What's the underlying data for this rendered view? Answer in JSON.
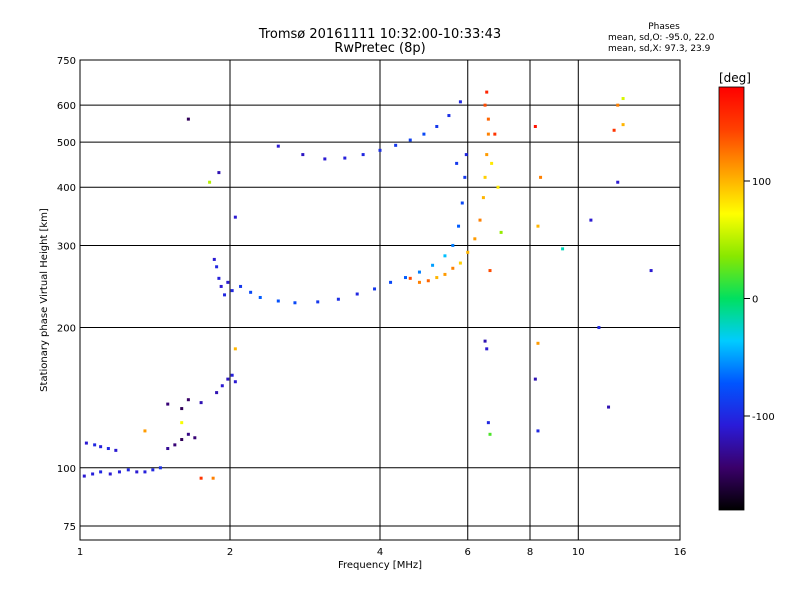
{
  "header": {
    "title_line1": "Tromsø 20161111 10:32:00-10:33:43",
    "title_line2": "RwPretec (8p)"
  },
  "phase_info": {
    "title": "Phases",
    "line_o": "mean, sd,O: -95.0, 22.0",
    "line_x": "mean, sd,X:  97.3, 23.9"
  },
  "colorbar": {
    "label": "[deg]",
    "ticks": [
      "100",
      "0",
      "-100"
    ],
    "tick_values": [
      100,
      0,
      -100
    ],
    "range": [
      -180,
      180
    ],
    "colormap": [
      "#000000",
      "#3a006a",
      "#2a1bd8",
      "#0055ff",
      "#00ccff",
      "#00e060",
      "#88e800",
      "#ffff00",
      "#ffa000",
      "#ff4000",
      "#ff0000"
    ]
  },
  "chart_data": {
    "type": "scatter",
    "title": "Tromsø 20161111 10:32:00-10:33:43",
    "subtitle": "RwPretec (8p)",
    "xlabel": "Frequency [MHz]",
    "ylabel": "Stationary phase Virtual Height [km]",
    "xscale": "log",
    "yscale": "log",
    "xlim": [
      1,
      16
    ],
    "ylim": [
      70,
      750
    ],
    "xticks": [
      1,
      2,
      4,
      6,
      8,
      10,
      16
    ],
    "xtick_labels": [
      "1",
      "2",
      "4",
      "6",
      "8",
      "10",
      "16"
    ],
    "yticks": [
      75,
      100,
      200,
      300,
      400,
      500,
      600,
      750
    ],
    "ytick_labels": [
      "75",
      "100",
      "200",
      "300",
      "400",
      "500",
      "600",
      "750"
    ],
    "grid": true,
    "color_scale": "phase [deg]",
    "series": [
      {
        "points": [
          [
            1.02,
            96,
            -110
          ],
          [
            1.06,
            97,
            -105
          ],
          [
            1.1,
            98,
            -100
          ],
          [
            1.15,
            97,
            -110
          ],
          [
            1.2,
            98,
            -105
          ],
          [
            1.25,
            99,
            -100
          ],
          [
            1.3,
            98,
            -110
          ],
          [
            1.35,
            98,
            -105
          ],
          [
            1.4,
            99,
            -100
          ],
          [
            1.45,
            100,
            -95
          ],
          [
            1.03,
            113,
            -110
          ],
          [
            1.07,
            112,
            -100
          ],
          [
            1.1,
            111,
            -105
          ],
          [
            1.14,
            110,
            -100
          ],
          [
            1.18,
            109,
            -110
          ],
          [
            1.5,
            110,
            -130
          ],
          [
            1.55,
            112,
            -140
          ],
          [
            1.6,
            115,
            -150
          ],
          [
            1.65,
            118,
            -135
          ],
          [
            1.7,
            116,
            -140
          ],
          [
            1.5,
            137,
            -140
          ],
          [
            1.6,
            134,
            -150
          ],
          [
            1.65,
            140,
            -145
          ],
          [
            1.75,
            138,
            -120
          ],
          [
            1.88,
            145,
            -120
          ],
          [
            1.93,
            150,
            -110
          ],
          [
            1.98,
            155,
            -115
          ],
          [
            2.02,
            158,
            -105
          ],
          [
            2.05,
            153,
            -110
          ],
          [
            1.86,
            280,
            -110
          ],
          [
            1.88,
            270,
            -100
          ],
          [
            1.9,
            255,
            -105
          ],
          [
            1.92,
            245,
            -110
          ],
          [
            1.95,
            235,
            -100
          ],
          [
            1.98,
            250,
            -110
          ],
          [
            2.02,
            240,
            -100
          ],
          [
            2.1,
            245,
            -90
          ],
          [
            2.2,
            238,
            -80
          ],
          [
            2.3,
            232,
            -70
          ],
          [
            2.5,
            228,
            -75
          ],
          [
            2.7,
            226,
            -80
          ],
          [
            3.0,
            227,
            -90
          ],
          [
            3.3,
            230,
            -95
          ],
          [
            3.6,
            236,
            -100
          ],
          [
            3.9,
            242,
            -90
          ],
          [
            4.2,
            250,
            -80
          ],
          [
            4.5,
            256,
            -70
          ],
          [
            4.8,
            263,
            -60
          ],
          [
            5.1,
            272,
            -50
          ],
          [
            5.4,
            285,
            -40
          ],
          [
            5.6,
            300,
            -60
          ],
          [
            5.75,
            330,
            -70
          ],
          [
            5.85,
            370,
            -80
          ],
          [
            5.92,
            420,
            -90
          ],
          [
            5.96,
            470,
            -100
          ],
          [
            5.7,
            450,
            -90
          ],
          [
            2.5,
            490,
            -110
          ],
          [
            2.8,
            470,
            -115
          ],
          [
            3.1,
            460,
            -110
          ],
          [
            3.4,
            462,
            -105
          ],
          [
            3.7,
            470,
            -100
          ],
          [
            4.0,
            480,
            -95
          ],
          [
            4.3,
            492,
            -90
          ],
          [
            4.6,
            505,
            -85
          ],
          [
            4.9,
            520,
            -80
          ],
          [
            5.2,
            540,
            -90
          ],
          [
            5.5,
            570,
            -95
          ],
          [
            5.8,
            610,
            -100
          ],
          [
            1.65,
            560,
            -150
          ],
          [
            1.9,
            430,
            -120
          ],
          [
            2.05,
            345,
            -110
          ],
          [
            1.82,
            410,
            50
          ],
          [
            6.5,
            187,
            -120
          ],
          [
            6.55,
            180,
            -110
          ],
          [
            6.6,
            125,
            -100
          ],
          [
            6.65,
            118,
            20
          ],
          [
            8.2,
            155,
            -120
          ],
          [
            8.3,
            120,
            -100
          ],
          [
            9.3,
            295,
            -20
          ],
          [
            10.6,
            340,
            -110
          ],
          [
            11.0,
            200,
            -100
          ],
          [
            12.0,
            410,
            -110
          ],
          [
            11.5,
            135,
            -120
          ],
          [
            14.0,
            265,
            -110
          ],
          [
            6.8,
            520,
            150
          ]
        ]
      },
      {
        "points": [
          [
            4.8,
            250,
            120
          ],
          [
            5.0,
            252,
            130
          ],
          [
            5.2,
            256,
            100
          ],
          [
            5.4,
            260,
            110
          ],
          [
            5.6,
            268,
            120
          ],
          [
            5.8,
            275,
            90
          ],
          [
            6.0,
            290,
            100
          ],
          [
            6.2,
            310,
            110
          ],
          [
            6.35,
            340,
            120
          ],
          [
            6.45,
            380,
            100
          ],
          [
            6.5,
            420,
            90
          ],
          [
            6.55,
            470,
            110
          ],
          [
            6.6,
            520,
            120
          ],
          [
            6.6,
            560,
            130
          ],
          [
            6.5,
            600,
            140
          ],
          [
            6.65,
            265,
            140
          ],
          [
            6.7,
            450,
            80
          ],
          [
            6.55,
            640,
            160
          ],
          [
            4.6,
            255,
            140
          ],
          [
            8.2,
            540,
            170
          ],
          [
            8.3,
            330,
            100
          ],
          [
            8.4,
            420,
            120
          ],
          [
            8.3,
            185,
            110
          ],
          [
            11.8,
            530,
            150
          ],
          [
            12.0,
            600,
            120
          ],
          [
            12.3,
            620,
            60
          ],
          [
            12.3,
            545,
            100
          ],
          [
            6.9,
            400,
            80
          ],
          [
            7.0,
            320,
            40
          ],
          [
            1.75,
            95,
            150
          ],
          [
            1.85,
            95,
            120
          ],
          [
            1.35,
            120,
            110
          ],
          [
            1.6,
            125,
            70
          ],
          [
            2.05,
            180,
            100
          ]
        ]
      }
    ]
  }
}
